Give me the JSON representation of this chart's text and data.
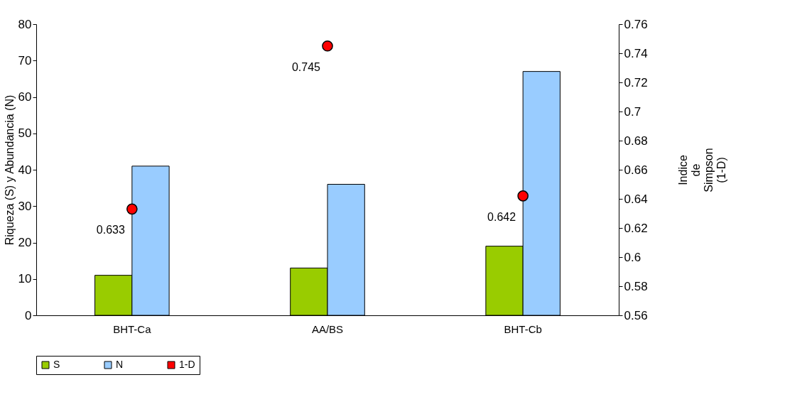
{
  "chart_data": {
    "type": "bar",
    "categories": [
      "BHT-Ca",
      "AA/BS",
      "BHT-Cb"
    ],
    "ylabel": "Riqueza (S) y Abundancia (N)",
    "y2label": "Indice de Simpson (1-D)",
    "ylim": [
      0,
      80
    ],
    "yticks": [
      0,
      10,
      20,
      30,
      40,
      50,
      60,
      70,
      80
    ],
    "y2lim": [
      0.56,
      0.76
    ],
    "y2ticks": [
      0.56,
      0.58,
      0.6,
      0.62,
      0.64,
      0.66,
      0.68,
      0.7,
      0.72,
      0.74,
      0.76
    ],
    "grid": false,
    "legend": "bottom",
    "series": [
      {
        "name": "S",
        "color": "#99cc00",
        "values": [
          11,
          13,
          19
        ]
      },
      {
        "name": "N",
        "color": "#99ccff",
        "values": [
          41,
          36,
          67
        ]
      },
      {
        "name": "1-D",
        "type": "scatter",
        "axis": "y2",
        "marker": "circle",
        "color": "#ff0000",
        "values": [
          0.633,
          0.745,
          0.642
        ],
        "value_labels": [
          "0.633",
          "0.745",
          "0.642"
        ]
      }
    ]
  }
}
